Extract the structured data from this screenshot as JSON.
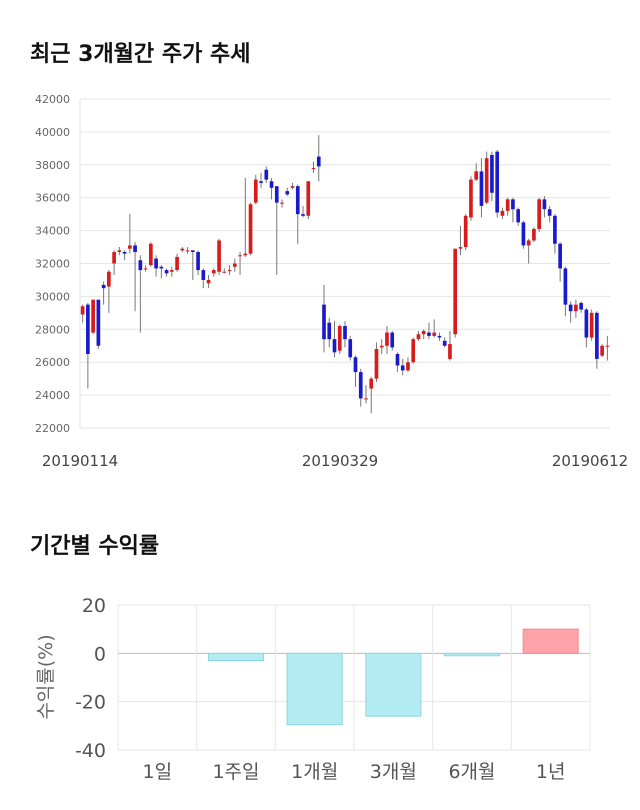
{
  "titles": {
    "price_trend": "최근 3개월간 주가 추세",
    "period_returns": "기간별 수익률"
  },
  "colors": {
    "up": "#d81b1b",
    "down": "#1a1acc",
    "negative_bar": "#b3ebf2",
    "positive_bar": "#ffa3a8"
  },
  "chart_data": [
    {
      "type": "candlestick",
      "title": "최근 3개월간 주가 추세",
      "ylim": [
        22000,
        42000
      ],
      "yticks": [
        "42000",
        "40000",
        "38000",
        "36000",
        "34000",
        "32000",
        "30000",
        "28000",
        "26000",
        "24000",
        "22000"
      ],
      "xtick_labels": [
        "20190114",
        "20190329",
        "20190612"
      ],
      "grid": true,
      "candles": [
        [
          28900,
          29400,
          28600,
          28400,
          29500
        ],
        [
          29500,
          26500,
          24400,
          29600
        ],
        [
          27800,
          29800,
          27700,
          29800
        ],
        [
          29800,
          27000,
          26800,
          29800
        ],
        [
          30700,
          30500,
          29500,
          30900
        ],
        [
          30600,
          31500,
          29000,
          31600
        ],
        [
          32000,
          32700,
          31300,
          32800
        ],
        [
          32700,
          32800,
          32500,
          33000
        ],
        [
          32700,
          32600,
          32200,
          32800
        ],
        [
          32900,
          33100,
          32600,
          35000
        ],
        [
          33100,
          32700,
          29100,
          33300
        ],
        [
          32200,
          31600,
          27800,
          32500
        ],
        [
          31700,
          31700,
          31500,
          31900
        ],
        [
          31900,
          33200,
          31800,
          33300
        ],
        [
          32300,
          31700,
          31200,
          32500
        ],
        [
          31800,
          31700,
          31100,
          31900
        ],
        [
          31600,
          31400,
          31200,
          31700
        ],
        [
          31500,
          31600,
          31200,
          31800
        ],
        [
          31600,
          32400,
          31500,
          32600
        ],
        [
          32800,
          32900,
          32700,
          33000
        ],
        [
          32800,
          32800,
          32600,
          33000
        ],
        [
          32800,
          32700,
          31000,
          32800
        ],
        [
          32700,
          31600,
          31300,
          32800
        ],
        [
          31600,
          31000,
          30500,
          31700
        ],
        [
          30800,
          31000,
          30500,
          31300
        ],
        [
          31400,
          31600,
          31200,
          31700
        ],
        [
          31500,
          33400,
          31300,
          33500
        ],
        [
          31500,
          31500,
          31400,
          31700
        ],
        [
          31600,
          31600,
          31300,
          31900
        ],
        [
          31800,
          32000,
          31500,
          32300
        ],
        [
          32500,
          32500,
          31300,
          32700
        ],
        [
          32500,
          32600,
          32400,
          37200
        ],
        [
          32600,
          35600,
          32500,
          35700
        ],
        [
          35700,
          37100,
          35600,
          37400
        ],
        [
          37000,
          36900,
          36600,
          37500
        ],
        [
          37700,
          37100,
          36900,
          37900
        ],
        [
          37000,
          36600,
          35900,
          37200
        ],
        [
          36700,
          35700,
          31300,
          36700
        ],
        [
          35700,
          35700,
          35400,
          35900
        ],
        [
          36400,
          36200,
          36100,
          36600
        ],
        [
          36600,
          36700,
          36500,
          36900
        ],
        [
          36700,
          35000,
          33200,
          36800
        ],
        [
          35000,
          34900,
          34800,
          35500
        ],
        [
          34900,
          37000,
          34700,
          37000
        ],
        [
          37800,
          37800,
          37500,
          38200
        ],
        [
          38500,
          37900,
          37000,
          39800
        ],
        [
          29500,
          27400,
          26600,
          30700
        ],
        [
          28400,
          27400,
          26900,
          28700
        ],
        [
          27400,
          26600,
          26300,
          28500
        ],
        [
          26700,
          28200,
          26500,
          28300
        ],
        [
          28200,
          27400,
          26900,
          28500
        ],
        [
          27400,
          26300,
          26100,
          27600
        ],
        [
          26300,
          25400,
          24500,
          26400
        ],
        [
          25400,
          23800,
          23300,
          25600
        ],
        [
          23800,
          23800,
          23500,
          24600
        ],
        [
          24400,
          25000,
          22900,
          25100
        ],
        [
          25000,
          26800,
          24800,
          27200
        ],
        [
          26900,
          27000,
          26500,
          27400
        ],
        [
          27000,
          27800,
          26500,
          28200
        ],
        [
          27800,
          26900,
          26700,
          27900
        ],
        [
          26500,
          25800,
          25400,
          26600
        ],
        [
          25800,
          25500,
          25200,
          26200
        ],
        [
          25500,
          26000,
          25400,
          26300
        ],
        [
          26000,
          27400,
          25900,
          27500
        ],
        [
          27400,
          27700,
          27300,
          27900
        ],
        [
          27700,
          27900,
          27400,
          28000
        ],
        [
          27800,
          27600,
          27400,
          28400
        ],
        [
          27600,
          27800,
          27500,
          28600
        ],
        [
          27600,
          27500,
          27300,
          27800
        ],
        [
          27300,
          27000,
          26900,
          27500
        ],
        [
          26200,
          27100,
          26100,
          27900
        ],
        [
          27700,
          32900,
          27500,
          32900
        ],
        [
          32900,
          33000,
          32500,
          34300
        ],
        [
          33000,
          34900,
          32800,
          35000
        ],
        [
          34800,
          37100,
          34600,
          37300
        ],
        [
          37100,
          37600,
          37000,
          38100
        ],
        [
          37600,
          35500,
          34800,
          38400
        ],
        [
          35700,
          38400,
          35600,
          38800
        ],
        [
          38600,
          36300,
          35800,
          38800
        ],
        [
          38800,
          35100,
          34800,
          38900
        ],
        [
          34900,
          35200,
          34700,
          35400
        ],
        [
          35200,
          35900,
          34900,
          36000
        ],
        [
          35900,
          35300,
          34500,
          36000
        ],
        [
          35300,
          34500,
          34300,
          35400
        ],
        [
          34500,
          33100,
          32900,
          34600
        ],
        [
          33100,
          33400,
          32000,
          33500
        ],
        [
          33400,
          34100,
          33300,
          34200
        ],
        [
          34100,
          35900,
          33900,
          36000
        ],
        [
          35900,
          35300,
          34800,
          36100
        ],
        [
          35300,
          34900,
          34500,
          35500
        ],
        [
          34900,
          33200,
          32600,
          35000
        ],
        [
          33200,
          31700,
          30900,
          33300
        ],
        [
          31700,
          29500,
          28800,
          31800
        ],
        [
          29500,
          29100,
          28400,
          29700
        ],
        [
          29100,
          29500,
          28700,
          29800
        ],
        [
          29600,
          29200,
          29000,
          29700
        ],
        [
          29200,
          27500,
          26900,
          29300
        ],
        [
          27500,
          29000,
          27300,
          29200
        ],
        [
          29000,
          26200,
          25600,
          29100
        ],
        [
          26400,
          27000,
          26300,
          27100
        ],
        [
          27000,
          27000,
          26100,
          27600
        ]
      ]
    },
    {
      "type": "bar",
      "title": "기간별 수익률",
      "ylabel": "수익률(%)",
      "categories": [
        "1일",
        "1주일",
        "1개월",
        "3개월",
        "6개월",
        "1년"
      ],
      "values": [
        0,
        -3,
        -29.5,
        -26,
        -1,
        10
      ],
      "ylim": [
        -40,
        20
      ],
      "yticks": [
        "20",
        "0",
        "-20",
        "-40"
      ],
      "grid": true
    }
  ]
}
